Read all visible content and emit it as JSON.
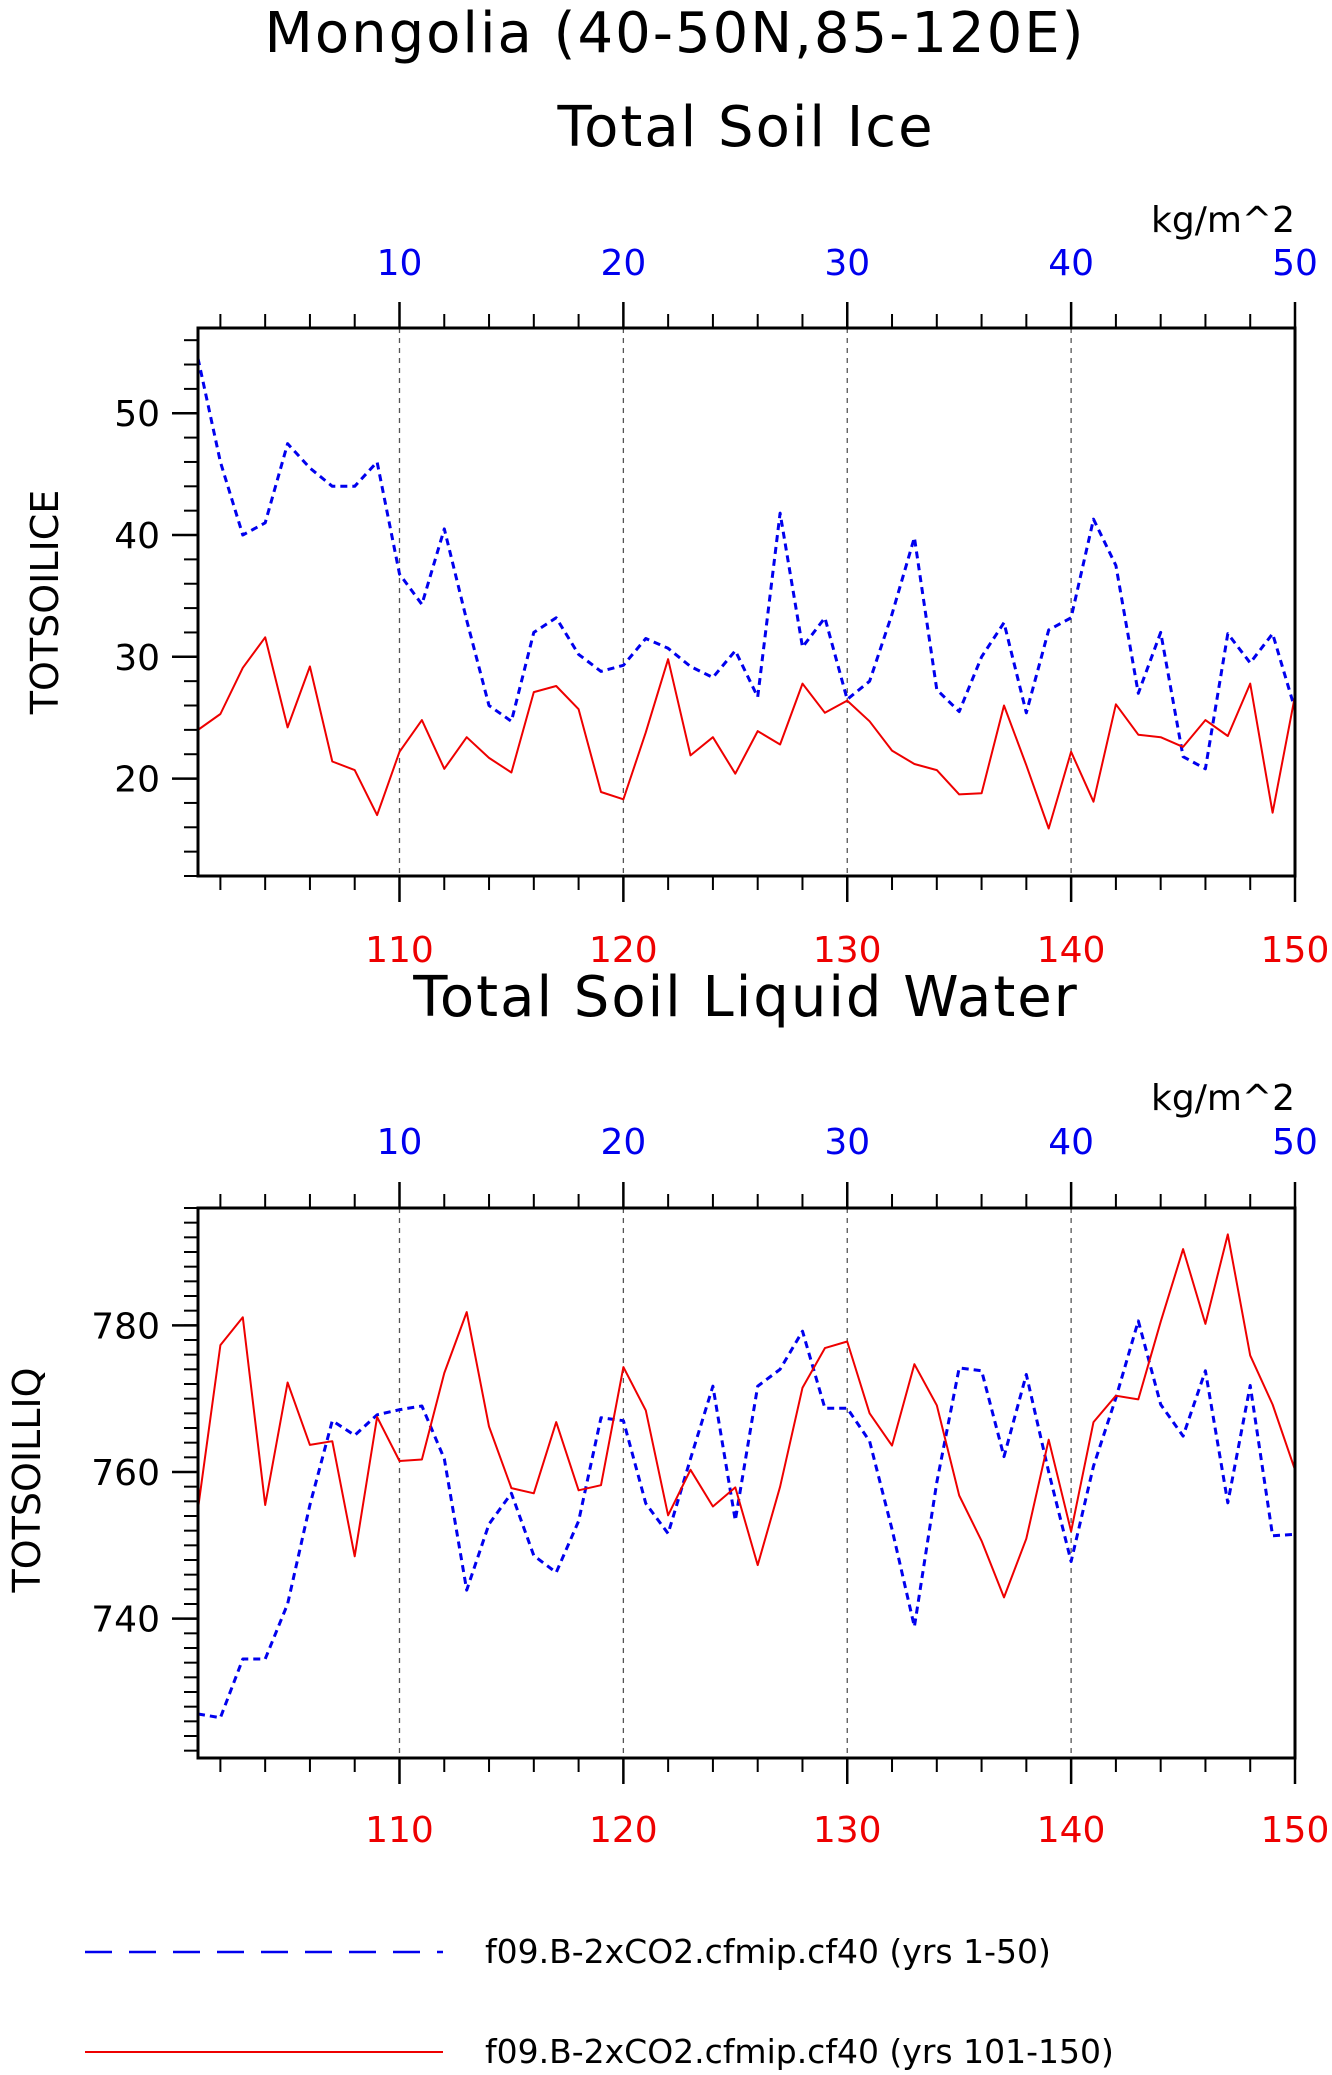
{
  "titles": {
    "main": "Mongolia (40-50N,85-120E)",
    "panel1": "Total Soil Ice",
    "panel2": "Total Soil Liquid Water"
  },
  "colors": {
    "blue": "#0000ee",
    "red": "#ee0000",
    "axis": "#000000",
    "grid": "#555555"
  },
  "legend": [
    {
      "label": "f09.B-2xCO2.cfmip.cf40 (yrs 1-50)",
      "color": "#0000ee",
      "dash": "dashed"
    },
    {
      "label": "f09.B-2xCO2.cfmip.cf40 (yrs 101-150)",
      "color": "#ee0000",
      "dash": "solid"
    }
  ],
  "chart_data": [
    {
      "type": "line",
      "title": "Total Soil Ice",
      "ylabel": "TOTSOILICE",
      "units": "kg/m^2",
      "ylim": [
        12,
        57
      ],
      "yticks": [
        20,
        30,
        40,
        50
      ],
      "x_bottom": {
        "lim": [
          101,
          150
        ],
        "ticks": [
          110,
          120,
          130,
          140,
          150
        ],
        "color": "#ee0000"
      },
      "x_top": {
        "lim": [
          1,
          50
        ],
        "ticks": [
          10,
          20,
          30,
          40,
          50
        ],
        "color": "#0000ee"
      },
      "grid": "vertical dashed at major ticks",
      "series": [
        {
          "axis": "top",
          "color": "#0000ee",
          "style": "dashed",
          "x": [
            1,
            2,
            3,
            4,
            5,
            6,
            7,
            8,
            9,
            10,
            11,
            12,
            13,
            14,
            15,
            16,
            17,
            18,
            19,
            20,
            21,
            22,
            23,
            24,
            25,
            26,
            27,
            28,
            29,
            30,
            31,
            32,
            33,
            34,
            35,
            36,
            37,
            38,
            39,
            40,
            41,
            42,
            43,
            44,
            45,
            46,
            47,
            48,
            49,
            50
          ],
          "values": [
            54.5,
            46,
            40,
            41,
            47.5,
            45.5,
            44,
            44,
            46,
            36.8,
            34.3,
            40.5,
            33,
            26,
            24.7,
            32,
            33.2,
            30.2,
            28.8,
            29.3,
            31.5,
            30.7,
            29.2,
            28.3,
            30.5,
            26.7,
            41.8,
            30.8,
            33.2,
            26.5,
            28,
            33.5,
            39.8,
            27.3,
            25.5,
            30,
            32.8,
            25.4,
            32.2,
            33.2,
            41.3,
            37.5,
            27,
            32,
            21.8,
            20.8,
            31.9,
            29.5,
            31.9,
            25.7
          ]
        },
        {
          "axis": "bottom",
          "color": "#ee0000",
          "style": "solid",
          "x": [
            101,
            102,
            103,
            104,
            105,
            106,
            107,
            108,
            109,
            110,
            111,
            112,
            113,
            114,
            115,
            116,
            117,
            118,
            119,
            120,
            121,
            122,
            123,
            124,
            125,
            126,
            127,
            128,
            129,
            130,
            131,
            132,
            133,
            134,
            135,
            136,
            137,
            138,
            139,
            140,
            141,
            142,
            143,
            144,
            145,
            146,
            147,
            148,
            149,
            150
          ],
          "values": [
            24,
            25.3,
            29.1,
            31.6,
            24.2,
            29.2,
            21.4,
            20.7,
            17,
            22.2,
            24.8,
            20.8,
            23.4,
            21.7,
            20.5,
            27.1,
            27.6,
            25.7,
            18.9,
            18.3,
            23.8,
            29.8,
            21.9,
            23.4,
            20.4,
            23.9,
            22.8,
            27.8,
            25.4,
            26.4,
            24.7,
            22.3,
            21.2,
            20.7,
            18.7,
            18.8,
            26,
            21.1,
            15.9,
            22.2,
            18.1,
            26.1,
            23.6,
            23.4,
            22.6,
            24.8,
            23.5,
            27.8,
            17.2,
            26.8
          ]
        }
      ]
    },
    {
      "type": "line",
      "title": "Total Soil Liquid Water",
      "ylabel": "TOTSOILLIQ",
      "units": "kg/m^2",
      "ylim": [
        721,
        796
      ],
      "yticks": [
        740,
        760,
        780
      ],
      "x_bottom": {
        "lim": [
          101,
          150
        ],
        "ticks": [
          110,
          120,
          130,
          140,
          150
        ],
        "color": "#ee0000"
      },
      "x_top": {
        "lim": [
          1,
          50
        ],
        "ticks": [
          10,
          20,
          30,
          40,
          50
        ],
        "color": "#0000ee"
      },
      "grid": "vertical dashed at major ticks",
      "series": [
        {
          "axis": "top",
          "color": "#0000ee",
          "style": "dashed",
          "x": [
            1,
            2,
            3,
            4,
            5,
            6,
            7,
            8,
            9,
            10,
            11,
            12,
            13,
            14,
            15,
            16,
            17,
            18,
            19,
            20,
            21,
            22,
            23,
            24,
            25,
            26,
            27,
            28,
            29,
            30,
            31,
            32,
            33,
            34,
            35,
            36,
            37,
            38,
            39,
            40,
            41,
            42,
            43,
            44,
            45,
            46,
            47,
            48,
            49,
            50
          ],
          "values": [
            727,
            726.5,
            734.5,
            734.5,
            742,
            755.5,
            767,
            765,
            767.8,
            768.5,
            769,
            761.8,
            743.9,
            752.9,
            757.1,
            748.6,
            746.3,
            753.3,
            767.4,
            767,
            755.7,
            751.6,
            761.8,
            771.7,
            753.4,
            771.7,
            774,
            779.2,
            768.7,
            768.7,
            764.2,
            752.2,
            738.9,
            758.6,
            774.2,
            773.8,
            762.1,
            773.3,
            760,
            747.8,
            760.8,
            770.1,
            780.6,
            769.2,
            764.9,
            773.8,
            755.8,
            771.8,
            751.3,
            751.5
          ]
        },
        {
          "axis": "bottom",
          "color": "#ee0000",
          "style": "solid",
          "x": [
            101,
            102,
            103,
            104,
            105,
            106,
            107,
            108,
            109,
            110,
            111,
            112,
            113,
            114,
            115,
            116,
            117,
            118,
            119,
            120,
            121,
            122,
            123,
            124,
            125,
            126,
            127,
            128,
            129,
            130,
            131,
            132,
            133,
            134,
            135,
            136,
            137,
            138,
            139,
            140,
            141,
            142,
            143,
            144,
            145,
            146,
            147,
            148,
            149,
            150
          ],
          "values": [
            755,
            777.3,
            781.1,
            755.5,
            772.2,
            763.7,
            764.2,
            748.5,
            767.5,
            761.5,
            761.7,
            773.5,
            781.8,
            766.2,
            757.8,
            757.1,
            766.8,
            757.5,
            758.2,
            774.3,
            768.4,
            754.1,
            760.3,
            755.3,
            757.9,
            747.3,
            758,
            771.5,
            776.9,
            777.8,
            768,
            763.6,
            774.7,
            769.1,
            756.8,
            750.6,
            742.9,
            750.9,
            764.4,
            751.9,
            766.8,
            770.4,
            769.9,
            780.5,
            790.4,
            780.2,
            792.4,
            775.9,
            769.2,
            760.3
          ]
        }
      ]
    }
  ]
}
